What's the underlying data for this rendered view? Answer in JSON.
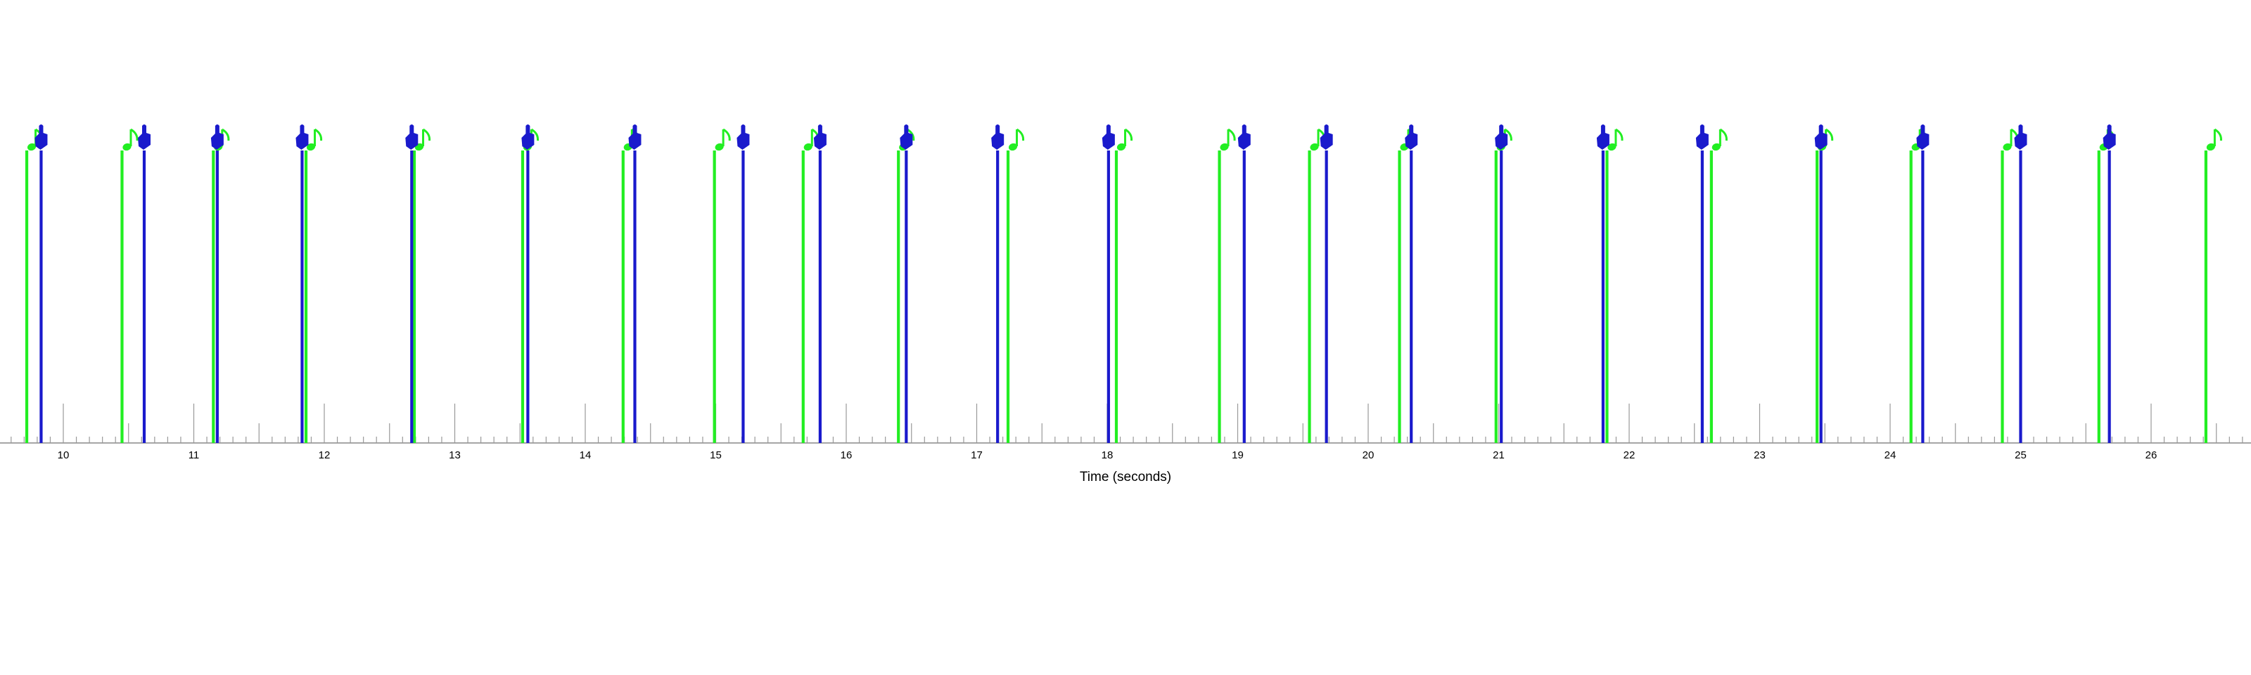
{
  "chart_data": {
    "type": "event-timeline",
    "xlabel": "Time (seconds)",
    "xlim": [
      9.58,
      26.75
    ],
    "major_ticks": [
      10,
      11,
      12,
      13,
      14,
      15,
      16,
      17,
      18,
      19,
      20,
      21,
      22,
      23,
      24,
      25,
      26
    ],
    "minor_tick_step": 0.1,
    "series": [
      {
        "marker": "music-note",
        "color": "#22ee22",
        "events": [
          9.72,
          10.45,
          11.15,
          11.86,
          12.69,
          13.52,
          14.29,
          14.99,
          15.67,
          16.4,
          17.24,
          18.07,
          18.86,
          19.55,
          20.24,
          20.98,
          21.83,
          22.63,
          23.44,
          24.16,
          24.86,
          25.6,
          26.42
        ]
      },
      {
        "marker": "hand",
        "color": "#1a1acc",
        "events": [
          9.83,
          10.62,
          11.18,
          11.83,
          12.67,
          13.56,
          14.38,
          15.21,
          15.8,
          16.46,
          17.16,
          18.01,
          19.05,
          19.68,
          20.33,
          21.02,
          21.8,
          22.56,
          23.47,
          24.25,
          25.0,
          25.68
        ]
      }
    ]
  }
}
